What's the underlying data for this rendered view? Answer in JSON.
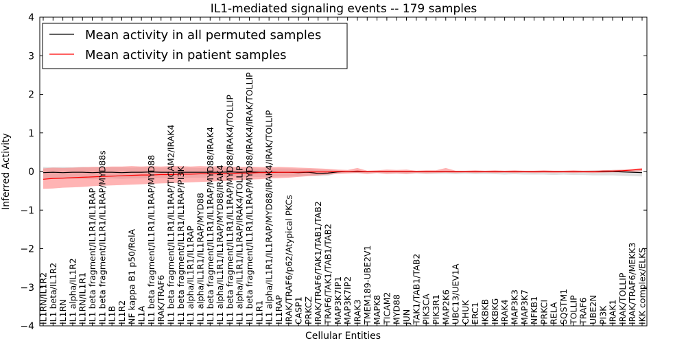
{
  "chart_data": {
    "type": "line",
    "title": "IL1-mediated signaling events -- 179 samples",
    "xlabel": "Cellular Entities",
    "ylabel": "Inferred Activity",
    "ylim": [
      -4,
      4
    ],
    "yticks": [
      -4,
      -3,
      -2,
      -1,
      0,
      1,
      2,
      3,
      4
    ],
    "legend_position": "top-left",
    "colors": {
      "permuted_line": "#000000",
      "patient_line": "#ff0000",
      "permuted_band": "#cccccc",
      "patient_band": "#ff7777"
    },
    "categories": [
      "IL1RN/IL1R2",
      "IL1 beta/IL1R2",
      "IL1RN",
      "IL1 alpha/IL1R2",
      "IL1RN/IL1R1",
      "IL1 beta fragment/IL1R1/IL1RAP",
      "IL1 beta fragment/IL1R1/IL1RAP/MYD88s",
      "IL1B",
      "IL1R2",
      "NF kappa B1 p50/RelA",
      "IL1A",
      "IL1 beta fragment/IL1R1/IL1RAP/MYD88",
      "IRAK/TRAF6",
      "IL1 beta fragment/IL1R1/IL1RAP/TICAM2/IRAK4",
      "IL1 beta fragment/IL1R1/IL1RAP/PI3K",
      "IL1 alpha/IL1R1/IL1RAP",
      "IL1 alpha/IL1R1/IL1RAP/MYD88",
      "IL1 beta fragment/IL1R1/IL1RAP/MYD88/IRAK4",
      "IL1 alpha/IL1R1/IL1RAP/MYD88/IRAK4",
      "IL1 beta fragment/IL1R1/IL1RAP/MYD88/IRAK4/TOLLIP",
      "IL1 alpha/IL1R1/IL1RAP/IRAK4/TOLLIP",
      "IL1 beta fragment/IL1R1/IL1RAP/MYD88/IRAK4/IRAK/TOLLIP",
      "IL1R1",
      "IL1 alpha/IL1R1/IL1RAP/MYD88/IRAK4/IRAK/TOLLIP",
      "IL1RAP",
      "IRAK/TRAF6/p62/Atypical PKCs",
      "CASP1",
      "PRKCZ",
      "IRAK/TRAF6/TAK1/TAB1/TAB2",
      "TRAF6/TAK1/TAB1/TAB2",
      "MAP3K7IP1",
      "MAP3K7IP2",
      "IRAK3",
      "TMEM189-UBE2V1",
      "MAPK8",
      "TICAM2",
      "MYD88",
      "JUN",
      "TAK1/TAB1/TAB2",
      "PIK3CA",
      "PIK3R1",
      "MAP2K6",
      "UBC13/UEV1A",
      "CHUK",
      "ERC1",
      "IKBKB",
      "IKBKG",
      "IRAK4",
      "MAP3K3",
      "MAP3K7",
      "NFKB1",
      "PRKCI",
      "RELA",
      "SQSTM1",
      "TOLLIP",
      "TRAF6",
      "UBE2N",
      "PI3K",
      "IRAK1",
      "IRAK/TOLLIP",
      "IRAK/TRAF6/MEKK3",
      "IKK complex/ELKS"
    ],
    "series": [
      {
        "name": "Mean activity in all permuted samples",
        "values": [
          -0.03,
          -0.02,
          -0.03,
          -0.02,
          -0.02,
          -0.03,
          -0.02,
          -0.02,
          -0.03,
          -0.02,
          -0.02,
          -0.01,
          -0.02,
          -0.02,
          -0.02,
          -0.02,
          -0.02,
          -0.02,
          -0.02,
          -0.01,
          -0.02,
          -0.01,
          -0.02,
          -0.02,
          -0.02,
          -0.02,
          -0.03,
          -0.02,
          -0.05,
          -0.04,
          -0.01,
          0.0,
          0.0,
          0.0,
          0.0,
          0.0,
          0.0,
          0.0,
          0.0,
          0.0,
          0.0,
          0.0,
          0.0,
          0.0,
          0.0,
          0.0,
          0.0,
          0.0,
          0.0,
          0.0,
          0.0,
          0.0,
          0.0,
          0.0,
          0.0,
          0.0,
          0.0,
          0.0,
          0.0,
          -0.01,
          -0.02,
          -0.03
        ],
        "band_upper": [
          0.12,
          0.11,
          0.12,
          0.11,
          0.12,
          0.11,
          0.12,
          0.11,
          0.11,
          0.1,
          0.11,
          0.1,
          0.1,
          0.1,
          0.1,
          0.1,
          0.09,
          0.09,
          0.09,
          0.09,
          0.09,
          0.08,
          0.08,
          0.08,
          0.08,
          0.08,
          0.07,
          0.07,
          0.05,
          0.04,
          0.02,
          0.01,
          0.01,
          0.01,
          0.01,
          0.01,
          0.01,
          0.01,
          0.01,
          0.01,
          0.01,
          0.01,
          0.01,
          0.01,
          0.01,
          0.01,
          0.01,
          0.01,
          0.01,
          0.01,
          0.01,
          0.01,
          0.01,
          0.01,
          0.02,
          0.02,
          0.03,
          0.03,
          0.04,
          0.04,
          0.04,
          0.05
        ],
        "band_lower": [
          -0.2,
          -0.19,
          -0.2,
          -0.19,
          -0.19,
          -0.2,
          -0.19,
          -0.18,
          -0.19,
          -0.18,
          -0.18,
          -0.17,
          -0.17,
          -0.17,
          -0.17,
          -0.16,
          -0.16,
          -0.16,
          -0.15,
          -0.15,
          -0.15,
          -0.14,
          -0.14,
          -0.14,
          -0.13,
          -0.13,
          -0.12,
          -0.11,
          -0.12,
          -0.11,
          -0.05,
          -0.04,
          -0.04,
          -0.05,
          -0.04,
          -0.05,
          -0.05,
          -0.06,
          -0.05,
          -0.06,
          -0.06,
          -0.06,
          -0.07,
          -0.06,
          -0.07,
          -0.07,
          -0.07,
          -0.08,
          -0.07,
          -0.08,
          -0.08,
          -0.08,
          -0.09,
          -0.08,
          -0.09,
          -0.09,
          -0.1,
          -0.1,
          -0.1,
          -0.11,
          -0.12,
          -0.13
        ]
      },
      {
        "name": "Mean activity in patient samples",
        "values": [
          -0.2,
          -0.18,
          -0.17,
          -0.16,
          -0.15,
          -0.14,
          -0.13,
          -0.12,
          -0.11,
          -0.1,
          -0.09,
          -0.09,
          -0.08,
          -0.08,
          -0.07,
          -0.07,
          -0.06,
          -0.06,
          -0.05,
          -0.05,
          -0.04,
          -0.04,
          -0.03,
          -0.03,
          -0.02,
          -0.02,
          -0.02,
          -0.01,
          -0.01,
          -0.01,
          0.0,
          0.0,
          0.01,
          0.0,
          0.0,
          0.0,
          0.0,
          0.0,
          0.0,
          0.0,
          0.0,
          0.0,
          0.0,
          0.0,
          0.0,
          0.0,
          0.0,
          0.0,
          0.0,
          0.0,
          0.0,
          0.0,
          0.0,
          0.0,
          0.0,
          0.0,
          0.0,
          0.01,
          0.01,
          0.02,
          0.04,
          0.06
        ],
        "band_upper": [
          0.08,
          0.1,
          0.09,
          0.1,
          0.11,
          0.12,
          0.12,
          0.13,
          0.13,
          0.14,
          0.13,
          0.14,
          0.13,
          0.14,
          0.14,
          0.13,
          0.14,
          0.13,
          0.14,
          0.13,
          0.12,
          0.13,
          0.12,
          0.11,
          0.12,
          0.11,
          0.1,
          0.09,
          0.08,
          0.07,
          0.05,
          0.04,
          0.09,
          0.02,
          0.03,
          0.05,
          0.04,
          0.05,
          0.02,
          0.03,
          0.03,
          0.09,
          0.02,
          0.02,
          0.03,
          0.02,
          0.03,
          0.02,
          0.03,
          0.02,
          0.02,
          0.03,
          0.02,
          0.02,
          0.03,
          0.02,
          0.02,
          0.03,
          0.04,
          0.05,
          0.06,
          0.09
        ],
        "band_lower": [
          -0.45,
          -0.44,
          -0.42,
          -0.41,
          -0.4,
          -0.38,
          -0.37,
          -0.36,
          -0.35,
          -0.34,
          -0.33,
          -0.32,
          -0.31,
          -0.3,
          -0.29,
          -0.28,
          -0.27,
          -0.26,
          -0.25,
          -0.24,
          -0.22,
          -0.21,
          -0.2,
          -0.18,
          -0.17,
          -0.16,
          -0.14,
          -0.12,
          -0.1,
          -0.08,
          -0.06,
          -0.05,
          -0.04,
          -0.06,
          -0.04,
          -0.06,
          -0.05,
          -0.06,
          -0.04,
          -0.05,
          -0.04,
          -0.03,
          -0.04,
          -0.03,
          -0.04,
          -0.03,
          -0.04,
          -0.03,
          -0.04,
          -0.03,
          -0.04,
          -0.03,
          -0.04,
          -0.03,
          -0.04,
          -0.03,
          -0.04,
          -0.03,
          -0.02,
          -0.02,
          -0.01,
          0.01
        ]
      }
    ]
  }
}
